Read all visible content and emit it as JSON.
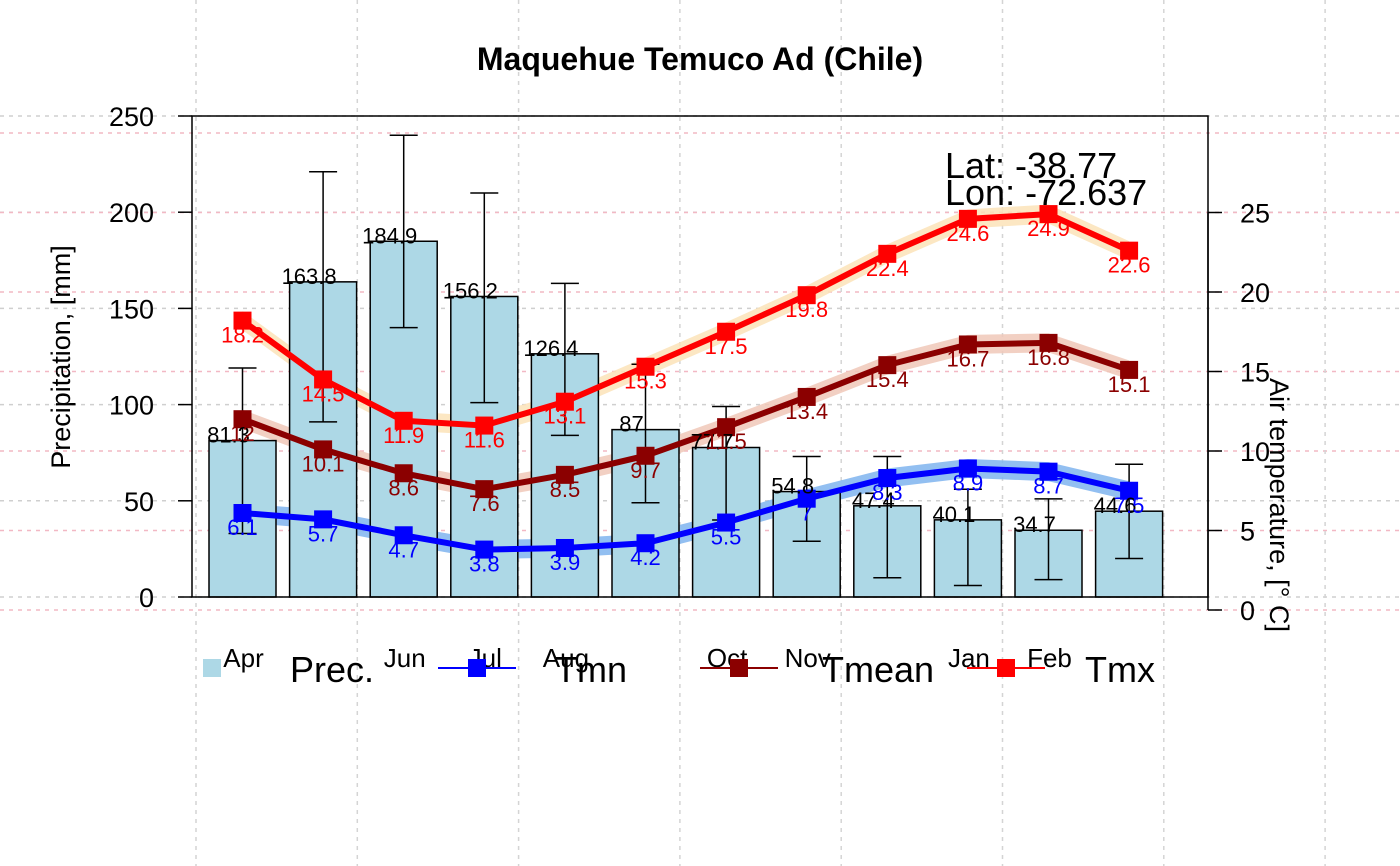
{
  "chart_data": {
    "type": "bar",
    "title": "Maquehue Temuco Ad (Chile)",
    "ylabel": "Precipitation, [mm]",
    "y2label": "Air temperature, [° C]",
    "ylim": [
      0,
      250
    ],
    "y2lim": [
      0,
      30
    ],
    "yticks": [
      0,
      50,
      100,
      150,
      200,
      250
    ],
    "y2ticks": [
      0,
      5,
      10,
      15,
      20,
      25
    ],
    "grid": true,
    "months": [
      "Apr",
      "Jun",
      "Jul",
      "Aug",
      "Oct",
      "Nov",
      "Jan",
      "Feb"
    ],
    "month_positions": [
      0,
      2,
      3,
      4,
      6,
      7,
      9,
      10
    ],
    "coords": {
      "lat": "Lat: -38.77",
      "lon": "Lon: -72.637"
    },
    "precip": {
      "name": "Prec.",
      "values": [
        81.3,
        163.8,
        184.9,
        156.2,
        126.4,
        87,
        77.7,
        54.8,
        47.4,
        40.1,
        34.7,
        44.6
      ],
      "labels": [
        "81.3",
        "163.8",
        "184.9",
        "156.2",
        "126.4",
        "87",
        "77.7",
        "54.8",
        "47.4",
        "40.1",
        "34.7",
        "44.6"
      ],
      "err_low": [
        33,
        91,
        140,
        101,
        84,
        49,
        40,
        29,
        10,
        6,
        9,
        20
      ],
      "err_high": [
        119,
        221,
        240,
        210,
        163,
        121,
        99,
        73,
        73,
        56,
        51,
        69
      ],
      "color": "#add8e6"
    },
    "series": [
      {
        "name": "Tmn",
        "color": "#0000ff",
        "band": "#7fb4ee",
        "values": [
          6.1,
          5.7,
          4.7,
          3.8,
          3.9,
          4.2,
          5.5,
          7.0,
          8.3,
          8.9,
          8.7,
          7.5
        ],
        "labels": [
          "6.1",
          "5.7",
          "4.7",
          "3.8",
          "3.9",
          "4.2",
          "5.5",
          "7",
          "8.3",
          "8.9",
          "8.7",
          "7.5"
        ]
      },
      {
        "name": "Tmean",
        "color": "#8b0000",
        "band": "#f0c8b8",
        "values": [
          12.0,
          10.1,
          8.6,
          7.6,
          8.5,
          9.7,
          11.5,
          13.4,
          15.4,
          16.7,
          16.8,
          15.1
        ],
        "labels": [
          "12",
          "10.1",
          "8.6",
          "7.6",
          "8.5",
          "9.7",
          "11.5",
          "13.4",
          "15.4",
          "16.7",
          "16.8",
          "15.1"
        ]
      },
      {
        "name": "Tmx",
        "color": "#ff0000",
        "band": "#fbe3b8",
        "values": [
          18.2,
          14.5,
          11.9,
          11.6,
          13.1,
          15.3,
          17.5,
          19.8,
          22.4,
          24.6,
          24.9,
          22.6
        ],
        "labels": [
          "18.2",
          "14.5",
          "11.9",
          "11.6",
          "13.1",
          "15.3",
          "17.5",
          "19.8",
          "22.4",
          "24.6",
          "24.9",
          "22.6"
        ]
      }
    ]
  }
}
